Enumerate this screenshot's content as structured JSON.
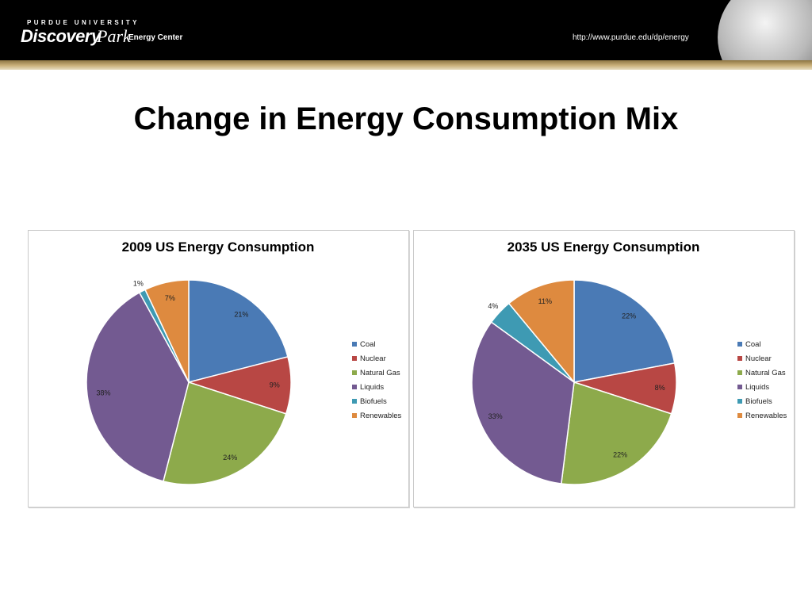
{
  "header": {
    "university": "PURDUE UNIVERSITY",
    "logo_discovery": "Discovery",
    "logo_park": "Park",
    "logo_center": "Energy Center",
    "url": "http://www.purdue.edu/dp/energy"
  },
  "page": {
    "title": "Change in Energy Consumption Mix"
  },
  "colors": {
    "Coal": "#4a7ab5",
    "Nuclear": "#b84744",
    "Natural Gas": "#8daa4b",
    "Liquids": "#735a91",
    "Biofuels": "#3e9ab3",
    "Renewables": "#de8a3f"
  },
  "chart_data": [
    {
      "type": "pie",
      "title": "2009 US Energy Consumption",
      "categories": [
        "Coal",
        "Nuclear",
        "Natural Gas",
        "Liquids",
        "Biofuels",
        "Renewables"
      ],
      "values": [
        21,
        9,
        24,
        38,
        1,
        7
      ],
      "labels": [
        "21%",
        "9%",
        "24%",
        "38%",
        "1%",
        "7%"
      ],
      "legend_position": "right"
    },
    {
      "type": "pie",
      "title": "2035 US Energy Consumption",
      "categories": [
        "Coal",
        "Nuclear",
        "Natural Gas",
        "Liquids",
        "Biofuels",
        "Renewables"
      ],
      "values": [
        22,
        8,
        22,
        33,
        4,
        11
      ],
      "labels": [
        "22%",
        "8%",
        "22%",
        "33%",
        "4%",
        "11%"
      ],
      "legend_position": "right"
    }
  ]
}
